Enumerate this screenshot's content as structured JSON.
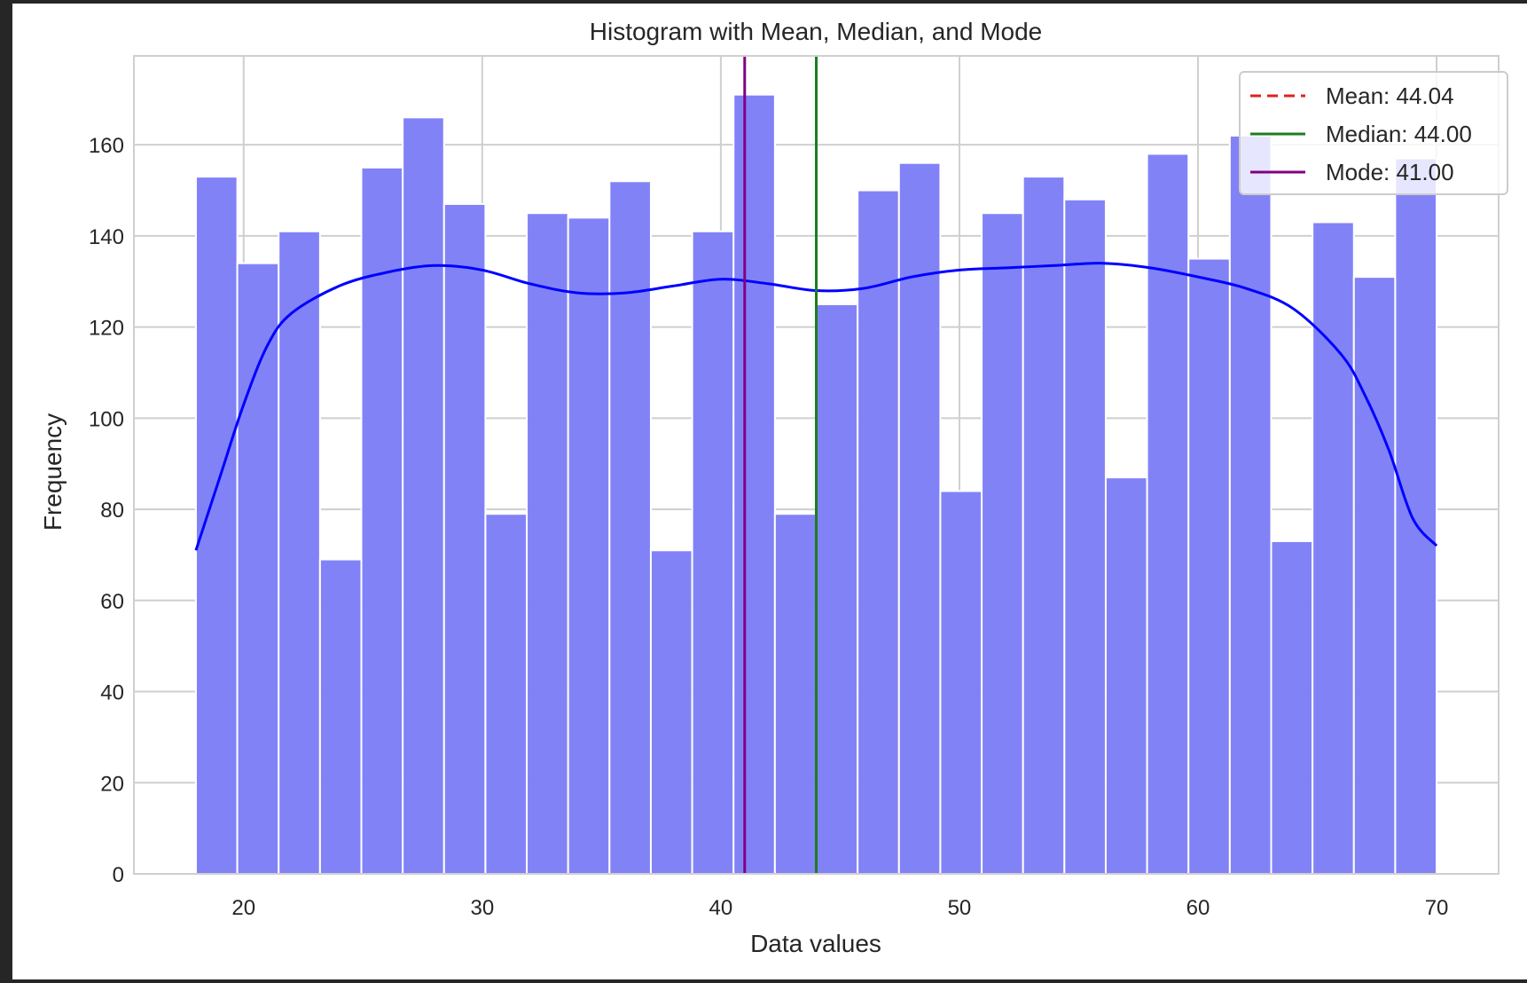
{
  "chart_data": {
    "type": "bar",
    "title": "Histogram with Mean, Median, and Mode",
    "xlabel": "Data values",
    "ylabel": "Frequency",
    "xlim": [
      15.4,
      72.6
    ],
    "ylim": [
      0,
      179.5
    ],
    "xticks": [
      20,
      30,
      40,
      50,
      60,
      70
    ],
    "yticks": [
      0,
      20,
      40,
      60,
      80,
      100,
      120,
      140,
      160
    ],
    "grid": true,
    "bins": {
      "start": 18,
      "end": 70,
      "values": [
        153,
        134,
        141,
        69,
        155,
        166,
        147,
        79,
        145,
        144,
        152,
        71,
        141,
        171,
        79,
        125,
        150,
        156,
        84,
        145,
        153,
        148,
        87,
        158,
        135,
        162,
        73,
        143,
        131,
        157
      ]
    },
    "bar_color": "#8080f7",
    "kde": {
      "color": "#0000ff",
      "x": [
        18,
        19,
        20,
        21,
        22,
        24,
        26,
        28,
        30,
        32,
        34,
        36,
        38,
        40,
        42,
        44,
        46,
        48,
        50,
        52,
        54,
        56,
        58,
        60,
        62,
        64,
        66,
        67,
        68,
        69,
        70
      ],
      "y": [
        71,
        87,
        103,
        116,
        123,
        129,
        132,
        133.5,
        132.5,
        129.5,
        127.5,
        127.5,
        129,
        130.5,
        129.5,
        128,
        128.5,
        131,
        132.5,
        133,
        133.5,
        134,
        133,
        131,
        128.5,
        124,
        114,
        105,
        93,
        78,
        72
      ]
    },
    "vlines": [
      {
        "name": "Mean: 44.04",
        "x": 44.04,
        "color": "#e02020",
        "style": "dashed",
        "visible": false
      },
      {
        "name": "Median: 44.00",
        "x": 44.0,
        "color": "#1e7d1e",
        "style": "solid",
        "visible": true
      },
      {
        "name": "Mode: 41.00",
        "x": 41.0,
        "color": "#800080",
        "style": "solid",
        "visible": true
      }
    ],
    "legend": {
      "position": "upper right",
      "entries": [
        "Mean: 44.04",
        "Median: 44.00",
        "Mode: 41.00"
      ]
    }
  }
}
